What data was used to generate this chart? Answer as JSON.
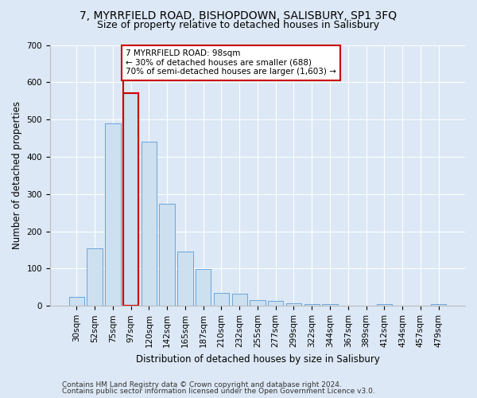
{
  "title_line1": "7, MYRRFIELD ROAD, BISHOPDOWN, SALISBURY, SP1 3FQ",
  "title_line2": "Size of property relative to detached houses in Salisbury",
  "xlabel": "Distribution of detached houses by size in Salisbury",
  "ylabel": "Number of detached properties",
  "categories": [
    "30sqm",
    "52sqm",
    "75sqm",
    "97sqm",
    "120sqm",
    "142sqm",
    "165sqm",
    "187sqm",
    "210sqm",
    "232sqm",
    "255sqm",
    "277sqm",
    "299sqm",
    "322sqm",
    "344sqm",
    "367sqm",
    "389sqm",
    "412sqm",
    "434sqm",
    "457sqm",
    "479sqm"
  ],
  "values": [
    25,
    155,
    490,
    570,
    440,
    275,
    145,
    98,
    35,
    32,
    15,
    13,
    8,
    5,
    4,
    0,
    0,
    5,
    0,
    0,
    6
  ],
  "bar_color": "#cce0f0",
  "bar_edge_color": "#5b9bd5",
  "highlight_bar_index": 3,
  "highlight_line_color": "#cc0000",
  "ylim": [
    0,
    700
  ],
  "yticks": [
    0,
    100,
    200,
    300,
    400,
    500,
    600,
    700
  ],
  "annotation_text": "7 MYRRFIELD ROAD: 98sqm\n← 30% of detached houses are smaller (688)\n70% of semi-detached houses are larger (1,603) →",
  "annotation_box_color": "#ffffff",
  "annotation_box_edge": "#cc0000",
  "footer_line1": "Contains HM Land Registry data © Crown copyright and database right 2024.",
  "footer_line2": "Contains public sector information licensed under the Open Government Licence v3.0.",
  "background_color": "#dce8f5",
  "plot_bg_color": "#dce8f5",
  "grid_color": "#ffffff",
  "title_fontsize": 10,
  "subtitle_fontsize": 9,
  "axis_label_fontsize": 8.5,
  "tick_fontsize": 7.5,
  "footer_fontsize": 6.5
}
